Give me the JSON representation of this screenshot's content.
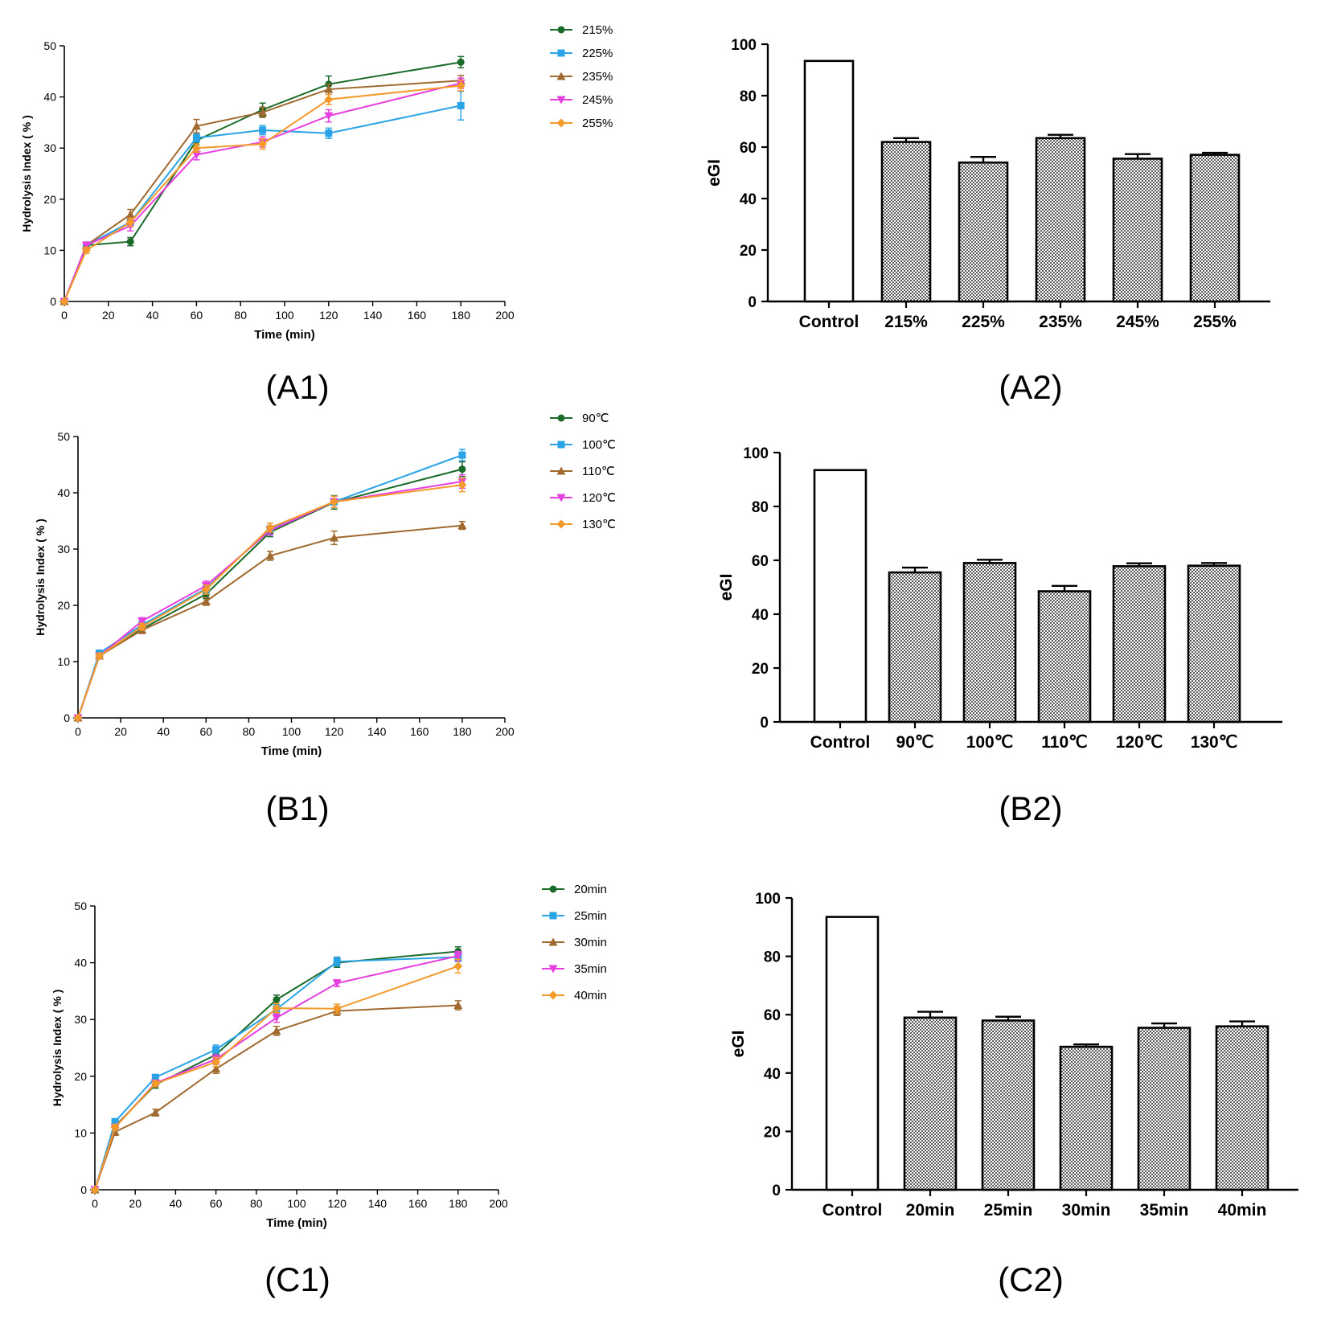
{
  "chart_data": [
    {
      "id": "A1",
      "type": "line",
      "panel_label": "(A1)",
      "xlabel": "Time (min)",
      "ylabel": "Hydrolysis Index ( % )",
      "xlim": [
        0,
        200
      ],
      "ylim": [
        0,
        50
      ],
      "xticks": [
        0,
        20,
        40,
        60,
        80,
        100,
        120,
        140,
        160,
        180,
        200
      ],
      "yticks": [
        0,
        10,
        20,
        30,
        40,
        50
      ],
      "legend_position": "top-right",
      "x": [
        0,
        10,
        30,
        60,
        90,
        120,
        180
      ],
      "series": [
        {
          "name": "215%",
          "color": "#1a6b2a",
          "marker": "circle",
          "values": [
            0,
            11,
            11.7,
            31.5,
            37.5,
            42.5,
            46.8
          ],
          "errors": [
            0,
            0.6,
            0.8,
            0.8,
            1.3,
            1.6,
            1.1
          ]
        },
        {
          "name": "225%",
          "color": "#29a3e6",
          "marker": "square",
          "values": [
            0,
            11,
            15.5,
            32,
            33.5,
            32.9,
            38.3
          ],
          "errors": [
            0,
            0.6,
            0.8,
            0.8,
            0.9,
            1,
            2.8
          ]
        },
        {
          "name": "235%",
          "color": "#a0692f",
          "marker": "triangle-up",
          "values": [
            0,
            11,
            17,
            34.3,
            37,
            41.5,
            43.2
          ],
          "errors": [
            0,
            0.6,
            1,
            1.3,
            1,
            1,
            1
          ]
        },
        {
          "name": "245%",
          "color": "#e63fe0",
          "marker": "triangle-down",
          "values": [
            0,
            11,
            14.8,
            28.7,
            31.2,
            36.3,
            42.7
          ],
          "errors": [
            0,
            0.6,
            1,
            1,
            1,
            1.2,
            1
          ]
        },
        {
          "name": "255%",
          "color": "#f39a2b",
          "marker": "diamond",
          "values": [
            0,
            10,
            15.5,
            30,
            30.8,
            39.5,
            42.2
          ],
          "errors": [
            0,
            0.6,
            0.8,
            0.8,
            1,
            1,
            1
          ]
        }
      ]
    },
    {
      "id": "A2",
      "type": "bar",
      "panel_label": "(A2)",
      "ylabel": "eGI",
      "ylim": [
        0,
        100
      ],
      "yticks": [
        0,
        20,
        40,
        60,
        80,
        100
      ],
      "categories": [
        "Control",
        "215%",
        "225%",
        "235%",
        "245%",
        "255%"
      ],
      "values": [
        93.5,
        62,
        54,
        63.5,
        55.5,
        57
      ],
      "errors": [
        0,
        1.5,
        2.2,
        1.3,
        1.8,
        0.8
      ]
    },
    {
      "id": "B1",
      "type": "line",
      "panel_label": "(B1)",
      "xlabel": "Time (min)",
      "ylabel": "Hydrolysis Index ( % )",
      "xlim": [
        0,
        200
      ],
      "ylim": [
        0,
        50
      ],
      "xticks": [
        0,
        20,
        40,
        60,
        80,
        100,
        120,
        140,
        160,
        180,
        200
      ],
      "yticks": [
        0,
        10,
        20,
        30,
        40,
        50
      ],
      "legend_position": "top-right",
      "x": [
        0,
        10,
        30,
        60,
        90,
        120,
        180
      ],
      "series": [
        {
          "name": "90℃",
          "color": "#1a6b2a",
          "marker": "circle",
          "values": [
            0,
            11,
            15.8,
            22,
            33,
            38.3,
            44.2
          ],
          "errors": [
            0,
            0.5,
            0.6,
            0.8,
            0.8,
            1.2,
            1.3
          ]
        },
        {
          "name": "100℃",
          "color": "#29a3e6",
          "marker": "square",
          "values": [
            0,
            11.5,
            16.5,
            23,
            33.6,
            38.4,
            46.7
          ],
          "errors": [
            0,
            0.5,
            0.6,
            0.8,
            1,
            1,
            1
          ]
        },
        {
          "name": "110℃",
          "color": "#a0692f",
          "marker": "triangle-up",
          "values": [
            0,
            11,
            15.6,
            20.7,
            28.8,
            32,
            34.2
          ],
          "errors": [
            0,
            0.5,
            0.6,
            0.7,
            0.8,
            1.2,
            0.7
          ]
        },
        {
          "name": "120℃",
          "color": "#e63fe0",
          "marker": "triangle-down",
          "values": [
            0,
            11,
            17.2,
            23.5,
            33.3,
            38.4,
            42
          ],
          "errors": [
            0,
            0.5,
            0.6,
            0.8,
            0.8,
            1,
            1.2
          ]
        },
        {
          "name": "130℃",
          "color": "#f39a2b",
          "marker": "diamond",
          "values": [
            0,
            11,
            16.2,
            22.8,
            33.8,
            38.4,
            41.4
          ],
          "errors": [
            0,
            0.5,
            0.6,
            0.8,
            0.8,
            1,
            1.2
          ]
        }
      ]
    },
    {
      "id": "B2",
      "type": "bar",
      "panel_label": "(B2)",
      "ylabel": "eGI",
      "ylim": [
        0,
        100
      ],
      "yticks": [
        0,
        20,
        40,
        60,
        80,
        100
      ],
      "categories": [
        "Control",
        "90℃",
        "100℃",
        "110℃",
        "120℃",
        "130℃"
      ],
      "values": [
        93.5,
        55.5,
        59,
        48.5,
        57.8,
        58
      ],
      "errors": [
        0,
        1.8,
        1.2,
        2,
        1.1,
        1
      ]
    },
    {
      "id": "C1",
      "type": "line",
      "panel_label": "(C1)",
      "xlabel": "Time (min)",
      "ylabel": "Hydrolysis Index ( % )",
      "xlim": [
        0,
        200
      ],
      "ylim": [
        0,
        50
      ],
      "xticks": [
        0,
        20,
        40,
        60,
        80,
        100,
        120,
        140,
        160,
        180,
        200
      ],
      "yticks": [
        0,
        10,
        20,
        30,
        40,
        50
      ],
      "legend_position": "top-right",
      "x": [
        0,
        10,
        30,
        60,
        90,
        120,
        180
      ],
      "series": [
        {
          "name": "20min",
          "color": "#1a6b2a",
          "marker": "circle",
          "values": [
            0,
            11.2,
            18.5,
            23.8,
            33.5,
            40,
            42
          ],
          "errors": [
            0,
            0.6,
            0.6,
            0.8,
            0.8,
            0.8,
            0.8
          ]
        },
        {
          "name": "25min",
          "color": "#29a3e6",
          "marker": "square",
          "values": [
            0,
            12,
            19.8,
            24.7,
            31.8,
            40.2,
            41
          ],
          "errors": [
            0,
            0.5,
            0.5,
            0.8,
            0.8,
            0.8,
            0.8
          ]
        },
        {
          "name": "30min",
          "color": "#a0692f",
          "marker": "triangle-up",
          "values": [
            0,
            10.2,
            13.6,
            21.3,
            28,
            31.5,
            32.5
          ],
          "errors": [
            0,
            0.6,
            0.6,
            0.8,
            0.8,
            0.8,
            0.8
          ]
        },
        {
          "name": "35min",
          "color": "#e63fe0",
          "marker": "triangle-down",
          "values": [
            0,
            11,
            18.8,
            23,
            30.3,
            36.4,
            41.2
          ],
          "errors": [
            0,
            0.5,
            0.5,
            0.8,
            0.8,
            0.6,
            0.8
          ]
        },
        {
          "name": "40min",
          "color": "#f39a2b",
          "marker": "diamond",
          "values": [
            0,
            11,
            18.7,
            22.5,
            32,
            31.9,
            39.4
          ],
          "errors": [
            0,
            0.5,
            0.5,
            0.8,
            0.8,
            0.8,
            1.2
          ]
        }
      ]
    },
    {
      "id": "C2",
      "type": "bar",
      "panel_label": "(C2)",
      "ylabel": "eGI",
      "ylim": [
        0,
        100
      ],
      "yticks": [
        0,
        20,
        40,
        60,
        80,
        100
      ],
      "categories": [
        "Control",
        "20min",
        "25min",
        "30min",
        "35min",
        "40min"
      ],
      "values": [
        93.5,
        59,
        58,
        49,
        55.5,
        56
      ],
      "errors": [
        0,
        2,
        1.3,
        0.8,
        1.5,
        1.7
      ]
    }
  ]
}
